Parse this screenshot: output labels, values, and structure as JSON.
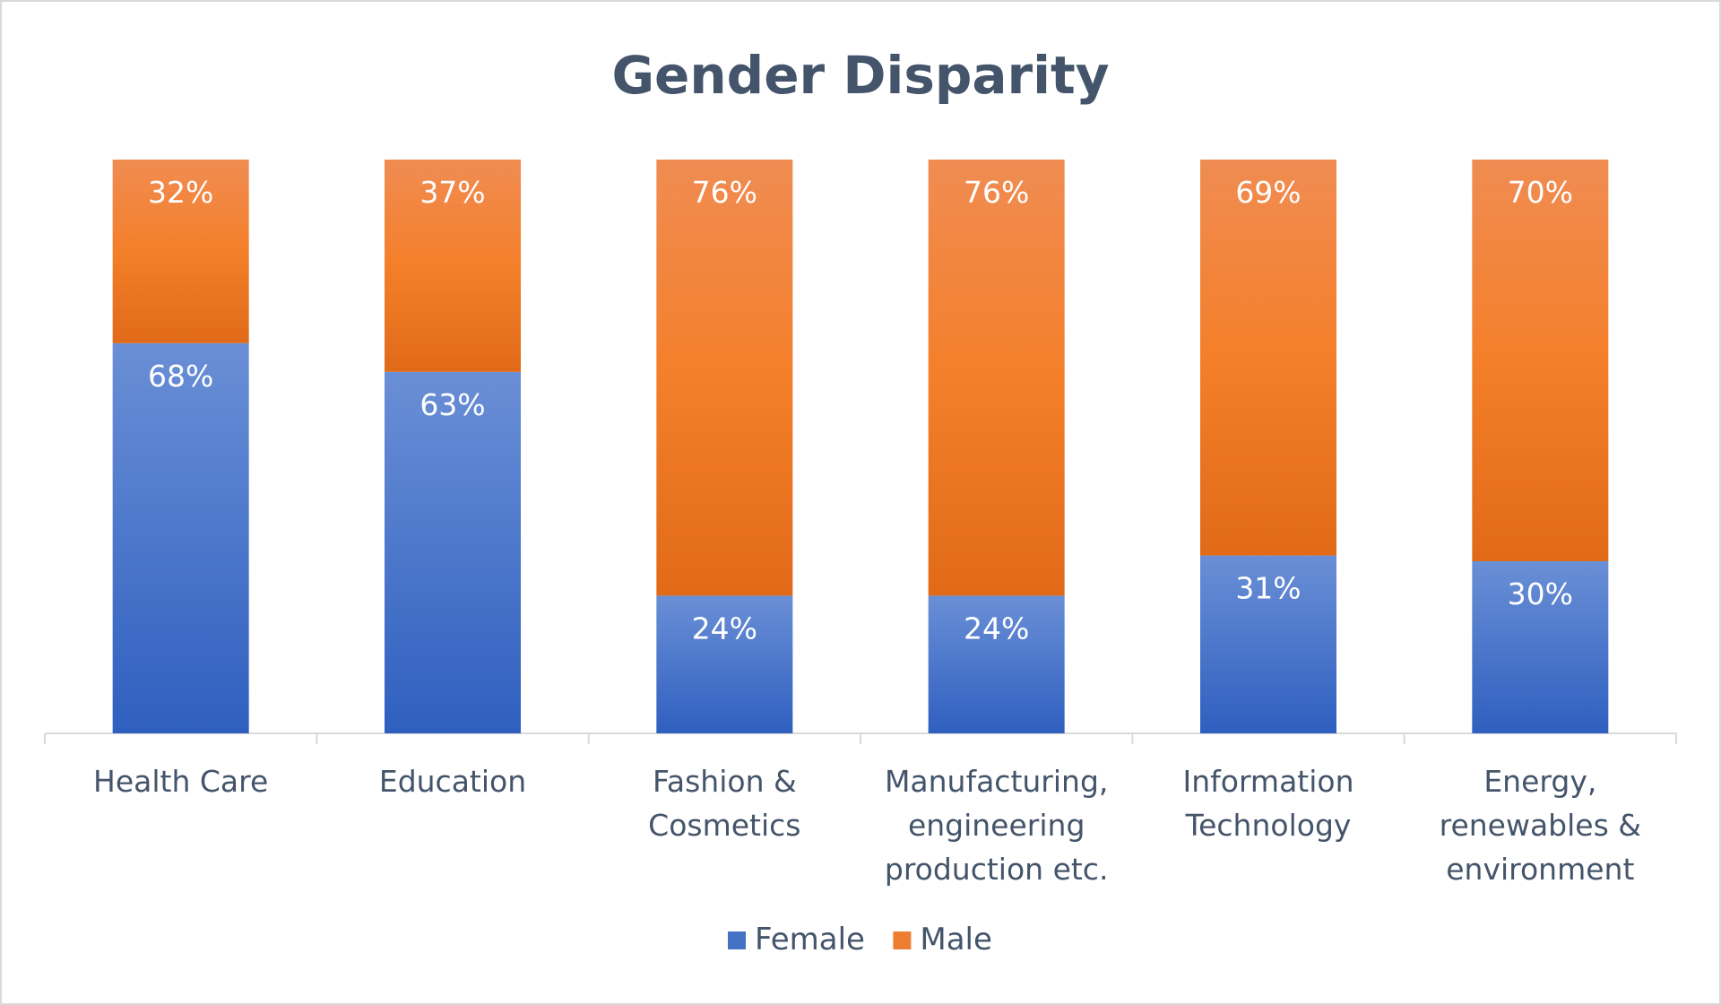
{
  "chart_data": {
    "type": "bar",
    "stacked": true,
    "percent": true,
    "title": "Gender Disparity",
    "xlabel": "",
    "ylabel": "",
    "ylim": [
      0,
      100
    ],
    "grid": false,
    "legend_position": "bottom",
    "categories": [
      [
        "Health Care"
      ],
      [
        "Education"
      ],
      [
        "Fashion &",
        "Cosmetics"
      ],
      [
        "Manufacturing,",
        "engineering",
        "production etc."
      ],
      [
        "Information",
        "Technology"
      ],
      [
        "Energy,",
        "renewables &",
        "environment"
      ]
    ],
    "series": [
      {
        "name": "Female",
        "color": "#4472c4",
        "values": [
          68,
          63,
          24,
          24,
          31,
          30
        ],
        "labels": [
          "68%",
          "63%",
          "24%",
          "24%",
          "31%",
          "30%"
        ]
      },
      {
        "name": "Male",
        "color": "#ed7d31",
        "values": [
          32,
          37,
          76,
          76,
          69,
          70
        ],
        "labels": [
          "32%",
          "37%",
          "76%",
          "76%",
          "69%",
          "70%"
        ]
      }
    ]
  }
}
